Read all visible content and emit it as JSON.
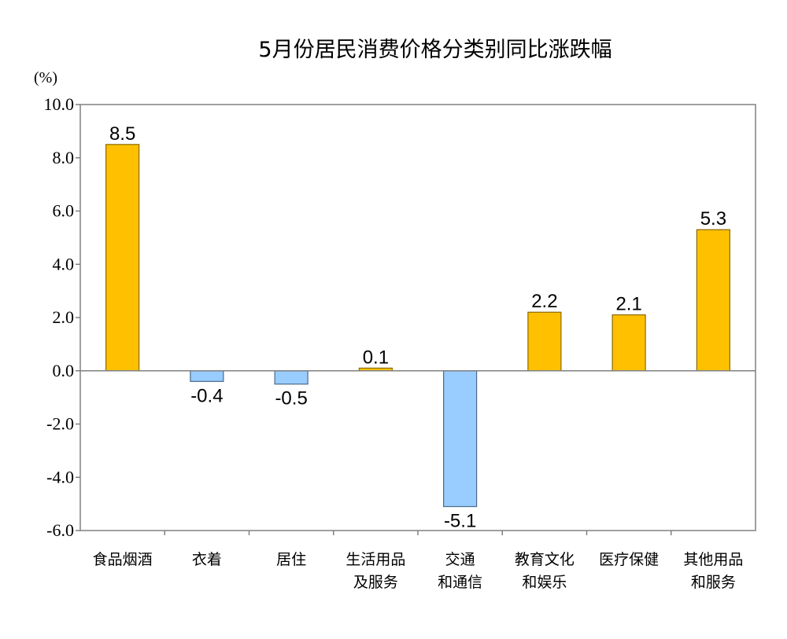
{
  "chart_data": {
    "type": "bar",
    "title": "5月份居民消费价格分类别同比涨跌幅",
    "ylabel": "(%)",
    "xlabel": "",
    "ylim": [
      -6,
      10
    ],
    "yticks": [
      "10.0",
      "8.0",
      "6.0",
      "4.0",
      "2.0",
      "0.0",
      "-2.0",
      "-4.0",
      "-6.0"
    ],
    "categories": [
      [
        "食品烟酒"
      ],
      [
        "衣着"
      ],
      [
        "居住"
      ],
      [
        "生活用品",
        "及服务"
      ],
      [
        "交通",
        "和通信"
      ],
      [
        "教育文化",
        "和娱乐"
      ],
      [
        "医疗保健"
      ],
      [
        "其他用品",
        "和服务"
      ]
    ],
    "values": [
      8.5,
      -0.4,
      -0.5,
      0.1,
      -5.1,
      2.2,
      2.1,
      5.3
    ],
    "data_labels": [
      "8.5",
      "-0.4",
      "-0.5",
      "0.1",
      "-5.1",
      "2.2",
      "2.1",
      "5.3"
    ],
    "grid": false,
    "legend": "none",
    "colors": {
      "positive_fill": "#FFC000",
      "positive_stroke": "#8A6A00",
      "negative_fill": "#99CCFF",
      "negative_stroke": "#4A6A8A",
      "axis": "#808080"
    }
  }
}
